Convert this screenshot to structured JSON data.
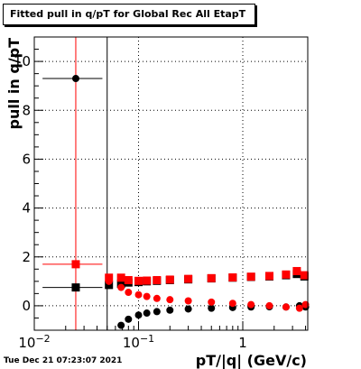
{
  "title": "Fitted pull in q/pT for Global Rec All EtapT",
  "timestamp": "Tue Dec 21 07:23:07 2021",
  "chart_data": {
    "type": "scatter",
    "title": "Fitted pull in q/pT for Global Rec All EtapT",
    "xlabel": "pT/|q| (GeV/c)",
    "ylabel": "pull in q/pT",
    "xscale": "log",
    "xlim": [
      0.01,
      4.2
    ],
    "ylim": [
      -1,
      11
    ],
    "grid": true,
    "x_tick_labels": [
      "10^-2",
      "10^-1",
      "1"
    ],
    "y_tick_labels": [
      "0",
      "2",
      "4",
      "6",
      "8",
      "10"
    ],
    "colors": {
      "black": "#000000",
      "red": "#ff0000"
    },
    "series": [
      {
        "color": "#000000",
        "marker": "circle",
        "points": [
          {
            "x": 0.025,
            "y": 9.3,
            "xerr": [
              0.012,
              0.045
            ],
            "yerr": 0
          },
          {
            "x": 0.068,
            "y": -0.8
          },
          {
            "x": 0.08,
            "y": -0.55
          },
          {
            "x": 0.1,
            "y": -0.38
          },
          {
            "x": 0.12,
            "y": -0.3
          },
          {
            "x": 0.15,
            "y": -0.24
          },
          {
            "x": 0.2,
            "y": -0.18
          },
          {
            "x": 0.3,
            "y": -0.13
          },
          {
            "x": 0.5,
            "y": -0.1
          },
          {
            "x": 0.8,
            "y": -0.07
          },
          {
            "x": 1.2,
            "y": -0.05
          },
          {
            "x": 1.8,
            "y": -0.04
          },
          {
            "x": 2.6,
            "y": -0.05
          },
          {
            "x": 3.5,
            "y": 0.0
          },
          {
            "x": 4.0,
            "y": -0.05
          }
        ]
      },
      {
        "color": "#000000",
        "marker": "square",
        "points": [
          {
            "x": 0.025,
            "y": 0.75,
            "xerr": [
              0.012,
              0.045
            ],
            "yerr": 0
          },
          {
            "x": 0.052,
            "y": 0.85,
            "xerr": [
              0.05,
              0.054
            ],
            "yerr": 0
          },
          {
            "x": 0.068,
            "y": 0.9
          },
          {
            "x": 0.08,
            "y": 0.95
          },
          {
            "x": 0.1,
            "y": 0.97
          },
          {
            "x": 0.12,
            "y": 1.0
          },
          {
            "x": 0.15,
            "y": 1.02
          },
          {
            "x": 0.2,
            "y": 1.05
          },
          {
            "x": 0.3,
            "y": 1.08
          },
          {
            "x": 0.5,
            "y": 1.12
          },
          {
            "x": 0.8,
            "y": 1.15
          },
          {
            "x": 1.2,
            "y": 1.18
          },
          {
            "x": 1.8,
            "y": 1.2
          },
          {
            "x": 2.6,
            "y": 1.25
          },
          {
            "x": 3.3,
            "y": 1.3
          },
          {
            "x": 3.9,
            "y": 1.2
          }
        ]
      },
      {
        "color": "#ff0000",
        "marker": "square",
        "points": [
          {
            "x": 0.025,
            "y": 1.7,
            "xerr": [
              0.012,
              0.045
            ],
            "yerr": 0
          },
          {
            "x": 0.052,
            "y": 1.15
          },
          {
            "x": 0.068,
            "y": 1.15
          },
          {
            "x": 0.08,
            "y": 1.05
          },
          {
            "x": 0.1,
            "y": 1.02
          },
          {
            "x": 0.12,
            "y": 1.03
          },
          {
            "x": 0.15,
            "y": 1.05
          },
          {
            "x": 0.2,
            "y": 1.07
          },
          {
            "x": 0.3,
            "y": 1.1
          },
          {
            "x": 0.5,
            "y": 1.13
          },
          {
            "x": 0.8,
            "y": 1.16
          },
          {
            "x": 1.2,
            "y": 1.19
          },
          {
            "x": 1.8,
            "y": 1.22
          },
          {
            "x": 2.6,
            "y": 1.28
          },
          {
            "x": 3.3,
            "y": 1.42
          },
          {
            "x": 3.9,
            "y": 1.25
          }
        ]
      },
      {
        "color": "#ff0000",
        "marker": "circle",
        "points": [
          {
            "x": 0.052,
            "y": 1.0
          },
          {
            "x": 0.068,
            "y": 0.75
          },
          {
            "x": 0.08,
            "y": 0.55
          },
          {
            "x": 0.1,
            "y": 0.45
          },
          {
            "x": 0.12,
            "y": 0.38
          },
          {
            "x": 0.15,
            "y": 0.3
          },
          {
            "x": 0.2,
            "y": 0.25
          },
          {
            "x": 0.3,
            "y": 0.2
          },
          {
            "x": 0.5,
            "y": 0.15
          },
          {
            "x": 0.8,
            "y": 0.1
          },
          {
            "x": 1.2,
            "y": 0.05
          },
          {
            "x": 1.8,
            "y": 0.0
          },
          {
            "x": 2.6,
            "y": -0.05
          },
          {
            "x": 3.5,
            "y": -0.1
          },
          {
            "x": 4.0,
            "y": 0.05
          }
        ]
      }
    ],
    "vertical_lines": [
      {
        "x": 0.025,
        "color": "#ff0000"
      },
      {
        "x": 0.05,
        "color": "#000000"
      }
    ]
  }
}
